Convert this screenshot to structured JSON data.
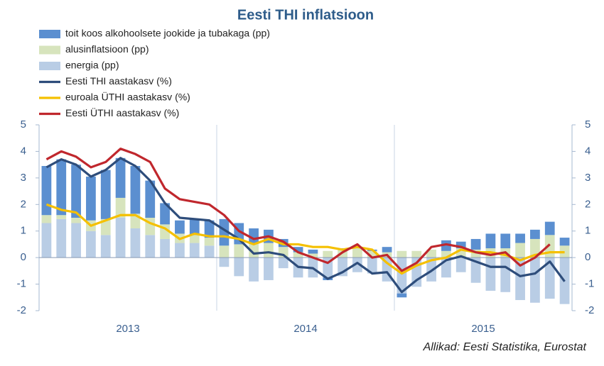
{
  "chart_data": {
    "type": "bar",
    "title": "Eesti THI inflatsioon",
    "groups": [
      "2013",
      "2014",
      "2015"
    ],
    "ylim": [
      -2,
      5
    ],
    "yticks": [
      -2,
      -1,
      0,
      1,
      2,
      3,
      4,
      5
    ],
    "series": [
      {
        "name": "toit koos alkohoolsete jookide ja tubakaga (pp)",
        "type": "bar",
        "color": "#5b8fd0",
        "values": [
          1.85,
          2.1,
          2.0,
          1.65,
          1.85,
          1.5,
          1.8,
          1.4,
          0.8,
          0.5,
          0.6,
          0.65,
          1.0,
          0.8,
          0.55,
          0.5,
          0.3,
          0.2,
          0.15,
          -0.1,
          0.05,
          0.05,
          0.05,
          0.2,
          -0.15,
          0,
          0,
          0.4,
          0.25,
          0.4,
          0.55,
          0.55,
          0.35,
          0.35,
          0.5,
          0.3
        ]
      },
      {
        "name": "alusinflatsioon (pp)",
        "type": "bar",
        "color": "#d7e4bd",
        "values": [
          0.3,
          0.15,
          0.2,
          0.4,
          0.6,
          0.75,
          0.55,
          0.65,
          0.55,
          0.35,
          0.3,
          0.3,
          0.45,
          0.5,
          0.55,
          0.55,
          0.4,
          0.2,
          0.15,
          0.25,
          0.3,
          0.35,
          0.25,
          0.2,
          0.25,
          0.25,
          0.3,
          0.25,
          0.35,
          0.3,
          0.35,
          0.35,
          0.55,
          0.7,
          0.85,
          0.45
        ]
      },
      {
        "name": "energia (pp)",
        "type": "bar",
        "color": "#b9cde5",
        "values": [
          1.3,
          1.45,
          1.3,
          1.0,
          0.85,
          1.5,
          1.1,
          0.85,
          0.7,
          0.55,
          0.55,
          0.45,
          -0.35,
          -0.7,
          -0.9,
          -0.85,
          -0.4,
          -0.75,
          -0.75,
          -0.75,
          -0.7,
          -0.55,
          -0.6,
          -0.9,
          -1.35,
          -1.1,
          -0.9,
          -0.75,
          -0.55,
          -0.95,
          -1.25,
          -1.3,
          -1.6,
          -1.7,
          -1.55,
          -1.75
        ]
      },
      {
        "name": "Eesti THI aastakasv (%)",
        "type": "line",
        "color": "#2e4d7b",
        "values": [
          3.4,
          3.7,
          3.5,
          3.05,
          3.3,
          3.75,
          3.45,
          2.9,
          2.05,
          1.5,
          1.45,
          1.4,
          1.05,
          0.7,
          0.15,
          0.2,
          0.1,
          -0.35,
          -0.4,
          -0.8,
          -0.55,
          -0.2,
          -0.6,
          -0.55,
          -1.3,
          -0.85,
          -0.5,
          -0.1,
          0.05,
          -0.15,
          -0.35,
          -0.35,
          -0.7,
          -0.6,
          -0.15,
          -0.9
        ]
      },
      {
        "name": "euroala ÜTHI aastakasv (%)",
        "type": "line",
        "color": "#f5c000",
        "values": [
          2.0,
          1.8,
          1.7,
          1.2,
          1.4,
          1.6,
          1.6,
          1.3,
          1.1,
          0.7,
          0.9,
          0.8,
          0.8,
          0.7,
          0.5,
          0.7,
          0.5,
          0.5,
          0.4,
          0.4,
          0.3,
          0.4,
          0.3,
          -0.2,
          -0.6,
          -0.3,
          -0.1,
          0,
          0.3,
          0.2,
          0.2,
          0.1,
          -0.1,
          0.1,
          0.2,
          0.2
        ]
      },
      {
        "name": "Eesti ÜTHI aastakasv (%)",
        "type": "line",
        "color": "#c0272d",
        "values": [
          3.7,
          4.0,
          3.8,
          3.4,
          3.6,
          4.1,
          3.9,
          3.6,
          2.6,
          2.2,
          2.1,
          2.0,
          1.6,
          1.0,
          0.7,
          0.8,
          0.6,
          0.2,
          0,
          -0.2,
          0.2,
          0.5,
          0,
          0.1,
          -0.5,
          -0.2,
          0.4,
          0.5,
          0.4,
          0.2,
          0.1,
          0.2,
          -0.3,
          0.0,
          0.5,
          null
        ]
      }
    ],
    "source": "Allikad: Eesti Statistika, Eurostat"
  }
}
